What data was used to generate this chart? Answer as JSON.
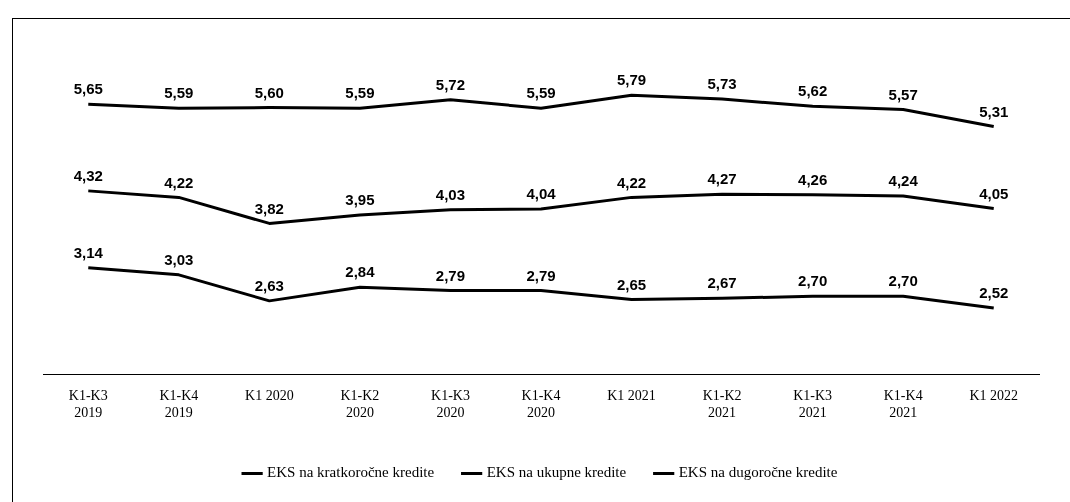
{
  "chart_data": {
    "type": "line",
    "categories": [
      "K1-K3\n2019",
      "K1-K4\n2019",
      "K1 2020",
      "K1-K2\n2020",
      "K1-K3\n2020",
      "K1-K4\n2020",
      "K1 2021",
      "K1-K2\n2021",
      "K1-K3\n2021",
      "K1-K4\n2021",
      "K1 2022"
    ],
    "series": [
      {
        "name": "EKS na kratkoročne kredite",
        "color": "#000000",
        "values": [
          5.65,
          5.59,
          5.6,
          5.59,
          5.72,
          5.59,
          5.79,
          5.73,
          5.62,
          5.57,
          5.31
        ],
        "value_labels": [
          "5,65",
          "5,59",
          "5,60",
          "5,59",
          "5,72",
          "5,59",
          "5,79",
          "5,73",
          "5,62",
          "5,57",
          "5,31"
        ]
      },
      {
        "name": "EKS na ukupne kredite",
        "color": "#000000",
        "values": [
          4.32,
          4.22,
          3.82,
          3.95,
          4.03,
          4.04,
          4.22,
          4.27,
          4.26,
          4.24,
          4.05
        ],
        "value_labels": [
          "4,32",
          "4,22",
          "3,82",
          "3,95",
          "4,03",
          "4,04",
          "4,22",
          "4,27",
          "4,26",
          "4,24",
          "4,05"
        ]
      },
      {
        "name": "EKS na dugoročne kredite",
        "color": "#000000",
        "values": [
          3.14,
          3.03,
          2.63,
          2.84,
          2.79,
          2.79,
          2.65,
          2.67,
          2.7,
          2.7,
          2.52
        ],
        "value_labels": [
          "3,14",
          "3,03",
          "2,63",
          "2,84",
          "2,79",
          "2,79",
          "2,65",
          "2,67",
          "2,70",
          "2,70",
          "2,52"
        ]
      }
    ],
    "legend": "bottom",
    "marker": "none",
    "line_style": "solid",
    "grid": false
  }
}
